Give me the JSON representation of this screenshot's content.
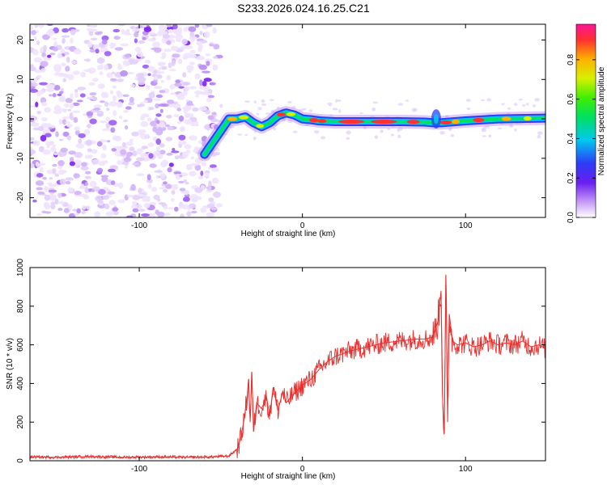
{
  "title": "S233.2026.024.16.25.C21",
  "colors": {
    "line": "#e8302e",
    "noise_dark": "#7b1ff0",
    "noise_light": "#d6b8fb"
  },
  "chart_data": [
    {
      "type": "heatmap",
      "xlabel": "Height of straight line (km)",
      "ylabel": "Frequency (Hz)",
      "xlim": [
        -167,
        149
      ],
      "ylim": [
        -25,
        24
      ],
      "xticks": [
        -100,
        0,
        100
      ],
      "yticks": [
        -20,
        -10,
        0,
        10,
        20
      ],
      "x_tick_labels": [
        "-100",
        "0",
        "100"
      ],
      "y_tick_labels": [
        "-20",
        "-10",
        "0",
        "10",
        "20"
      ],
      "noise_region_x": [
        -167,
        -51
      ],
      "signal_track": {
        "x": [
          -60,
          -50,
          -45,
          -40,
          -35,
          -30,
          -25,
          -20,
          -15,
          -10,
          -5,
          0,
          5,
          10,
          20,
          40,
          60,
          75,
          80,
          85,
          100,
          120,
          149
        ],
        "y": [
          -9,
          -3,
          0,
          0,
          0.5,
          -1,
          -2,
          -1,
          0.8,
          1.5,
          1,
          0,
          -0.2,
          -0.5,
          -0.7,
          -0.7,
          -0.7,
          -0.8,
          -1,
          -1,
          -0.5,
          0,
          0.2
        ]
      },
      "colorbar": {
        "label": "Normalized spectral amplitude",
        "range": [
          0,
          0.98
        ],
        "ticks": [
          0.0,
          0.2,
          0.4,
          0.6,
          0.8
        ],
        "tick_labels": [
          "0.0",
          "0.2",
          "0.4",
          "0.6",
          "0.8"
        ]
      },
      "grid": false
    },
    {
      "type": "line",
      "xlabel": "Height of straight line (km)",
      "ylabel": "SNR (10 * v/v)",
      "xlim": [
        -167,
        149
      ],
      "ylim": [
        0,
        1000
      ],
      "xticks": [
        -100,
        0,
        100
      ],
      "yticks": [
        0,
        200,
        400,
        600,
        800,
        1000
      ],
      "x_tick_labels": [
        "-100",
        "0",
        "100"
      ],
      "y_tick_labels": [
        "0",
        "200",
        "400",
        "600",
        "800",
        "1000"
      ],
      "series": [
        {
          "x": [
            -167,
            -150,
            -130,
            -110,
            -90,
            -70,
            -55,
            -45,
            -40,
            -38,
            -36,
            -34,
            -33,
            -32,
            -31,
            -30,
            -28,
            -25,
            -22,
            -20,
            -18,
            -15,
            -12,
            -10,
            -5,
            0,
            5,
            10,
            15,
            20,
            25,
            30,
            35,
            40,
            45,
            50,
            55,
            60,
            65,
            70,
            75,
            80,
            83,
            85,
            86,
            87,
            88,
            89,
            90,
            92,
            95,
            100,
            105,
            110,
            115,
            120,
            125,
            130,
            135,
            140,
            145,
            149
          ],
          "y": [
            20,
            18,
            22,
            18,
            20,
            18,
            20,
            25,
            60,
            110,
            200,
            320,
            420,
            200,
            460,
            150,
            300,
            270,
            330,
            230,
            380,
            260,
            360,
            300,
            350,
            390,
            420,
            470,
            510,
            540,
            555,
            570,
            580,
            590,
            600,
            610,
            615,
            620,
            625,
            630,
            630,
            640,
            720,
            880,
            300,
            140,
            960,
            200,
            760,
            620,
            600,
            610,
            590,
            600,
            620,
            600,
            610,
            600,
            620,
            590,
            600,
            580
          ]
        }
      ],
      "grid": false
    }
  ]
}
